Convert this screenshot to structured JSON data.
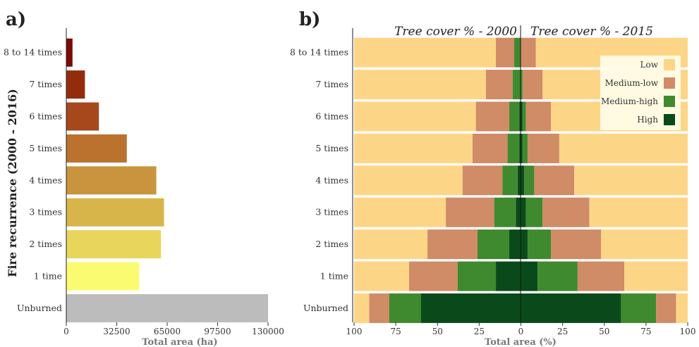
{
  "chart_data": [
    {
      "panel": "a)",
      "type": "bar",
      "orientation": "horizontal",
      "ylabel": "Fire recurrence (2000 - 2016)",
      "xlabel": "Total area (ha)",
      "xlim": [
        0,
        130000
      ],
      "xticks": [
        "0",
        "32500",
        "65000",
        "97500",
        "130000"
      ],
      "categories": [
        "8 to 14 times",
        "7 times",
        "6 times",
        "5 times",
        "4 times",
        "3 times",
        "2 times",
        "1 time",
        "Unburned"
      ],
      "values": [
        4000,
        12000,
        21000,
        39000,
        58000,
        63000,
        61000,
        47000,
        130000
      ],
      "colors": [
        "#7a0b04",
        "#922c0d",
        "#a6471c",
        "#ba722e",
        "#c9943d",
        "#d8b54b",
        "#e8d65c",
        "#fbfb72",
        "#bcbcbc"
      ]
    },
    {
      "panel": "b)",
      "type": "bar",
      "orientation": "horizontal",
      "stacked": true,
      "mirrored": true,
      "left_title": "Tree cover % - 2000",
      "right_title": "Tree cover % - 2015",
      "xlabel": "Total area (%)",
      "xlim": [
        -100,
        100
      ],
      "xticks": [
        "100",
        "75",
        "50",
        "25",
        "0",
        "25",
        "50",
        "75",
        "100"
      ],
      "categories": [
        "8 to 14 times",
        "7 times",
        "6 times",
        "5 times",
        "4 times",
        "3 times",
        "2 times",
        "1 time",
        "Unburned"
      ],
      "legend": [
        "Low",
        "Medium-low",
        "Medium-high",
        "High"
      ],
      "legend_position": "top-right",
      "colors": {
        "Low": "#fdd587",
        "Medium-low": "#d08b67",
        "Medium-high": "#3f8a2f",
        "High": "#0a4a1a"
      },
      "series_2000": [
        {
          "High": 0,
          "Medium-high": 4,
          "Medium-low": 11,
          "Low": 85
        },
        {
          "High": 0,
          "Medium-high": 5,
          "Medium-low": 16,
          "Low": 79
        },
        {
          "High": 1,
          "Medium-high": 6,
          "Medium-low": 20,
          "Low": 73
        },
        {
          "High": 1,
          "Medium-high": 7,
          "Medium-low": 21,
          "Low": 71
        },
        {
          "High": 2,
          "Medium-high": 9,
          "Medium-low": 24,
          "Low": 65
        },
        {
          "High": 3,
          "Medium-high": 13,
          "Medium-low": 29,
          "Low": 55
        },
        {
          "High": 7,
          "Medium-high": 19,
          "Medium-low": 30,
          "Low": 44
        },
        {
          "High": 15,
          "Medium-high": 23,
          "Medium-low": 29,
          "Low": 33
        },
        {
          "High": 60,
          "Medium-high": 19,
          "Medium-low": 12,
          "Low": 9
        }
      ],
      "series_2015": [
        {
          "High": 0,
          "Medium-high": 0,
          "Medium-low": 9,
          "Low": 91
        },
        {
          "High": 0,
          "Medium-high": 1,
          "Medium-low": 12,
          "Low": 87
        },
        {
          "High": 1,
          "Medium-high": 2,
          "Medium-low": 15,
          "Low": 82
        },
        {
          "High": 1,
          "Medium-high": 3,
          "Medium-low": 19,
          "Low": 77
        },
        {
          "High": 2,
          "Medium-high": 6,
          "Medium-low": 24,
          "Low": 68
        },
        {
          "High": 3,
          "Medium-high": 10,
          "Medium-low": 28,
          "Low": 59
        },
        {
          "High": 4,
          "Medium-high": 14,
          "Medium-low": 30,
          "Low": 52
        },
        {
          "High": 10,
          "Medium-high": 24,
          "Medium-low": 28,
          "Low": 38
        },
        {
          "High": 60,
          "Medium-high": 21,
          "Medium-low": 12,
          "Low": 7
        }
      ]
    }
  ]
}
